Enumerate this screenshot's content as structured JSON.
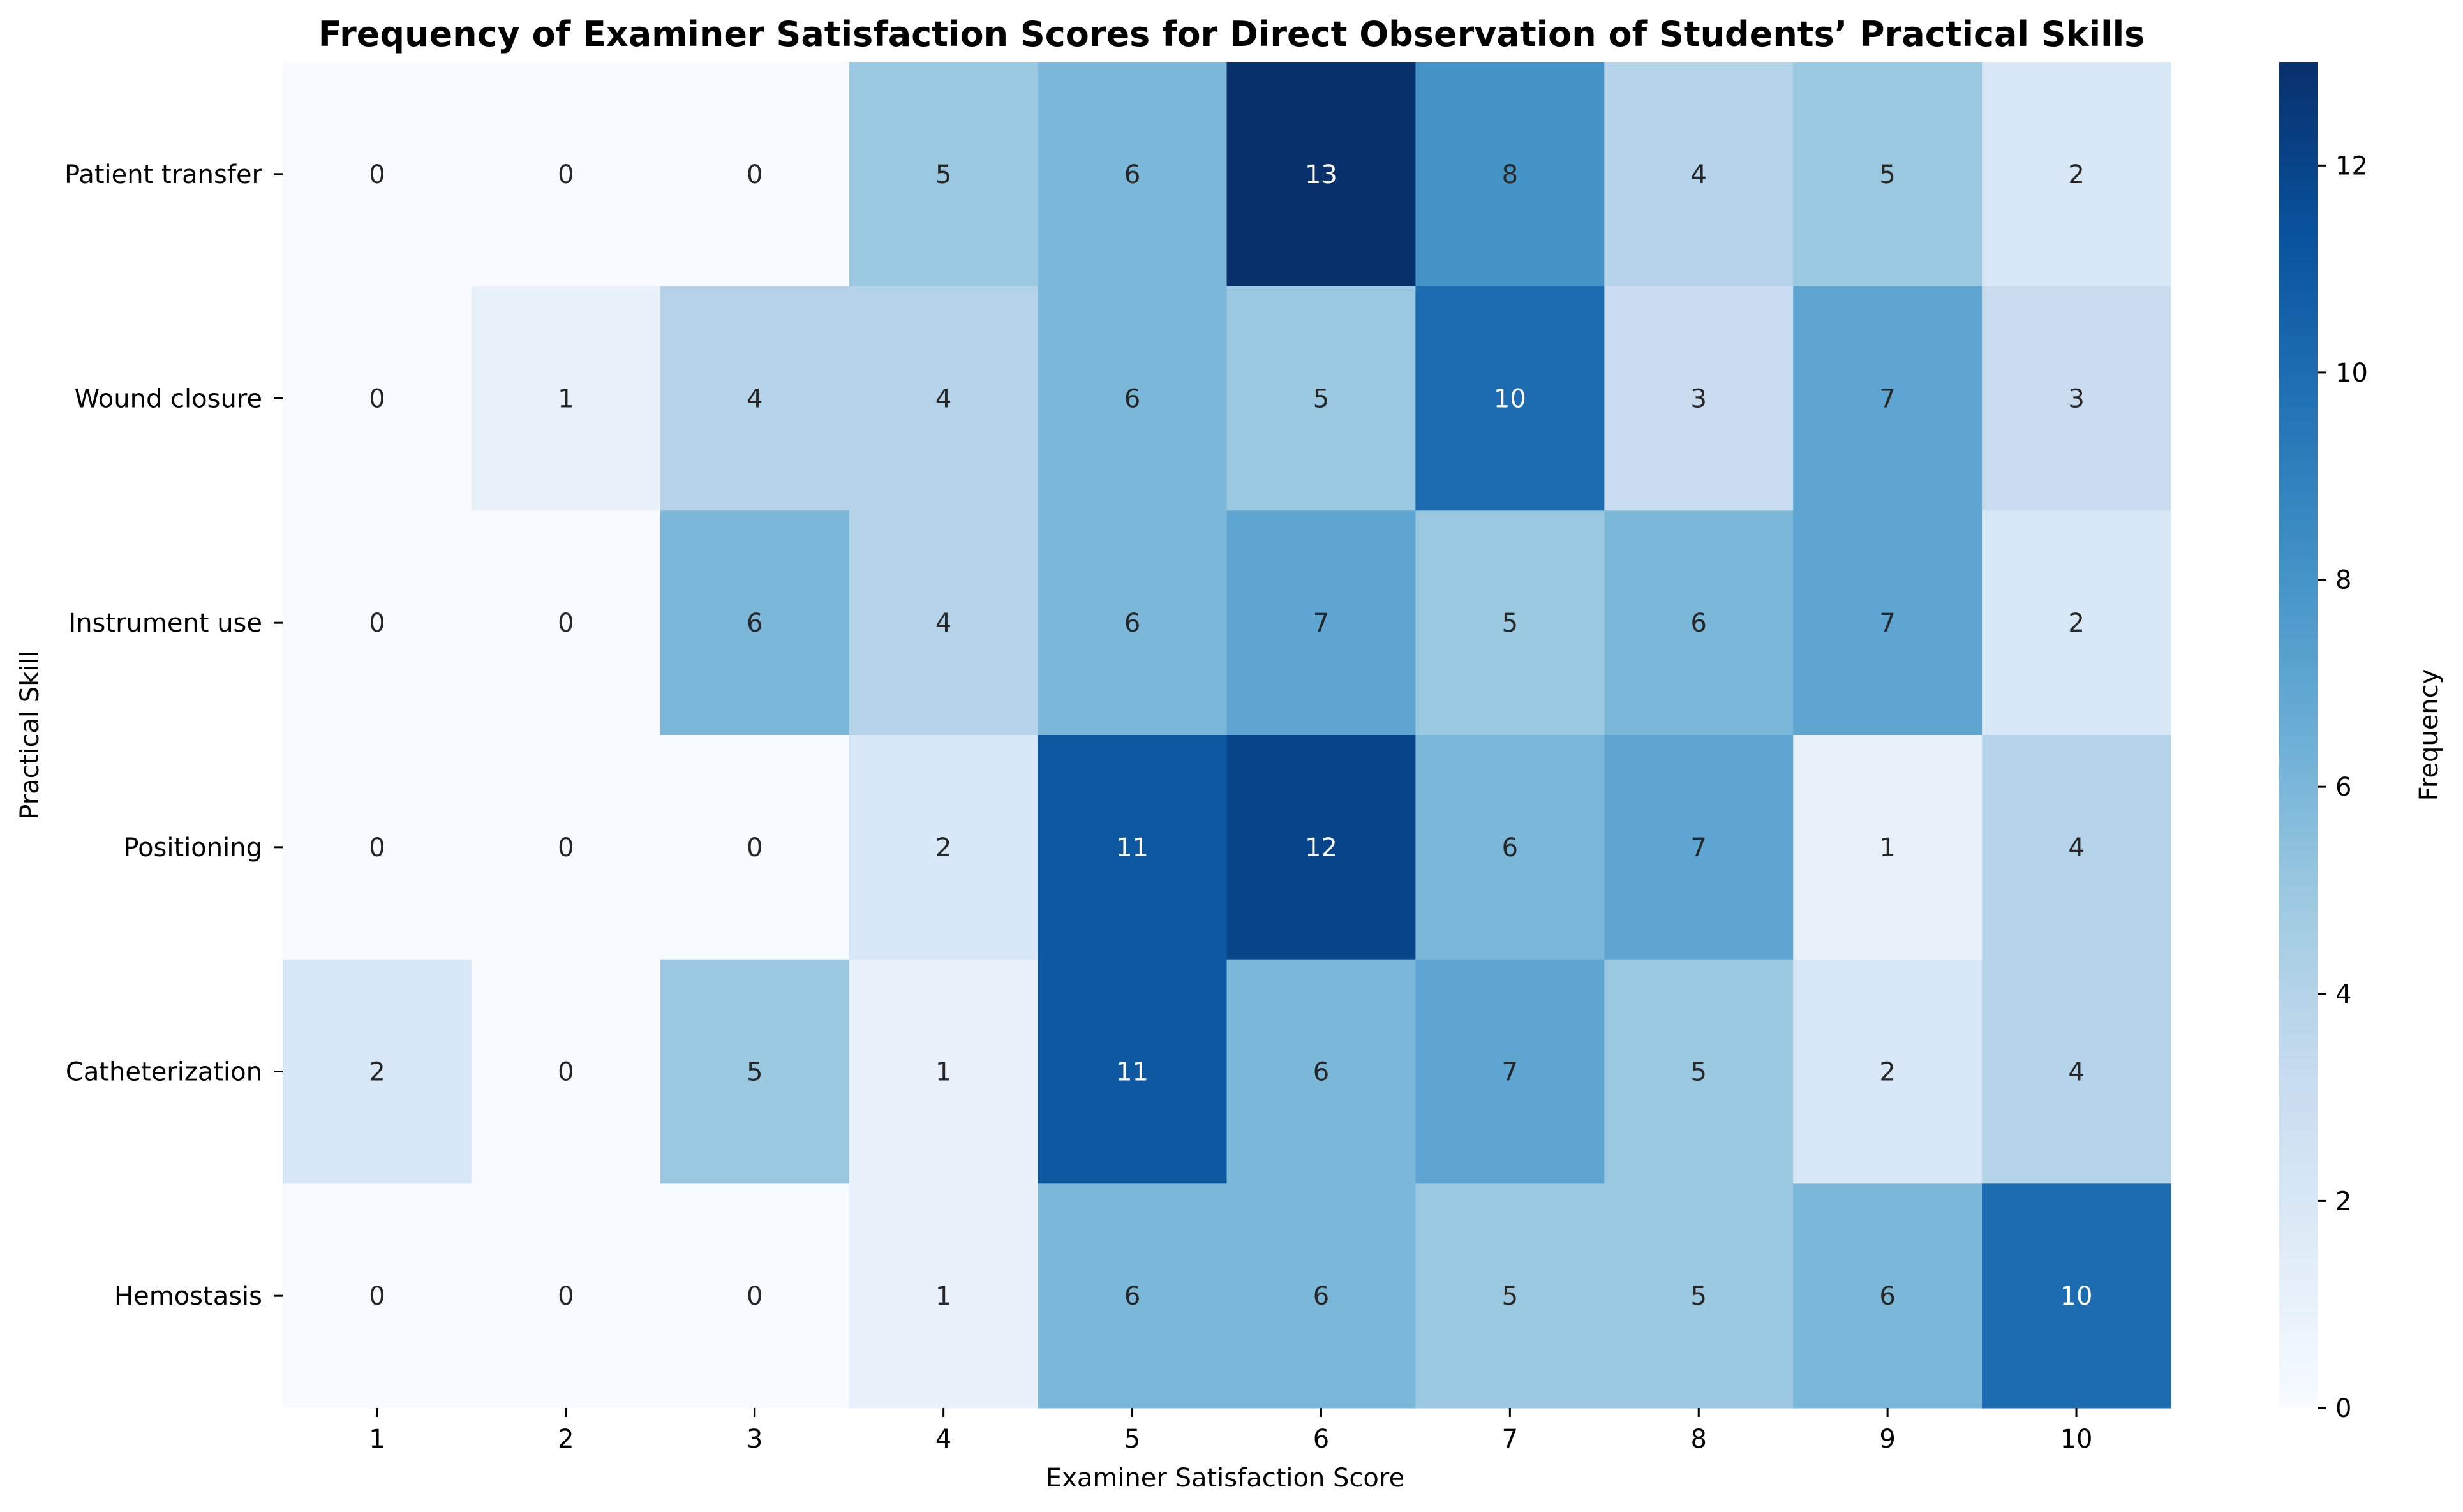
{
  "chart_data": {
    "type": "heatmap",
    "title": "Frequency of Examiner Satisfaction Scores for Direct Observation of Students’ Practical Skills",
    "xlabel": "Examiner Satisfaction Score",
    "ylabel": "Practical Skill",
    "x_categories": [
      "1",
      "2",
      "3",
      "4",
      "5",
      "6",
      "7",
      "8",
      "9",
      "10"
    ],
    "y_categories": [
      "Patient transfer",
      "Wound closure",
      "Instrument use",
      "Positioning",
      "Catheterization",
      "Hemostasis"
    ],
    "values": [
      [
        0,
        0,
        0,
        5,
        6,
        13,
        8,
        4,
        5,
        2
      ],
      [
        0,
        1,
        4,
        4,
        6,
        5,
        10,
        3,
        7,
        3
      ],
      [
        0,
        0,
        6,
        4,
        6,
        7,
        5,
        6,
        7,
        2
      ],
      [
        0,
        0,
        0,
        2,
        11,
        12,
        6,
        7,
        1,
        4
      ],
      [
        2,
        0,
        5,
        1,
        11,
        6,
        7,
        5,
        2,
        4
      ],
      [
        0,
        0,
        0,
        1,
        6,
        6,
        5,
        5,
        6,
        10
      ]
    ],
    "colormap": "Blues",
    "color_min": 0,
    "color_max": 13,
    "annotations": true,
    "colorbar": {
      "label": "Frequency",
      "ticks": [
        "0",
        "2",
        "4",
        "6",
        "8",
        "10",
        "12"
      ],
      "tick_values": [
        0,
        2,
        4,
        6,
        8,
        10,
        12
      ]
    }
  }
}
